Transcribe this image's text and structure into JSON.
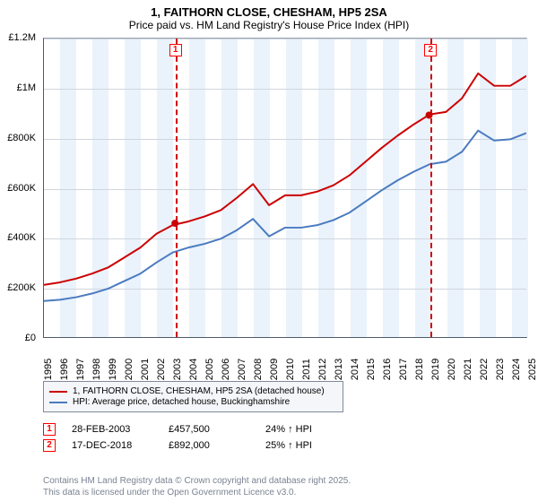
{
  "title": {
    "line1": "1, FAITHORN CLOSE, CHESHAM, HP5 2SA",
    "line2": "Price paid vs. HM Land Registry's House Price Index (HPI)"
  },
  "chart": {
    "type": "line",
    "background_color": "#ffffff",
    "band_color": "#eaf2fb",
    "grid_color": "#d0d6de",
    "axis_color": "#4f5a6a",
    "ylim": [
      0,
      1200000
    ],
    "ytick_step": 200000,
    "y_labels": [
      "£0",
      "£200K",
      "£400K",
      "£600K",
      "£800K",
      "£1M",
      "£1.2M"
    ],
    "x_years": [
      1995,
      1996,
      1997,
      1998,
      1999,
      2000,
      2001,
      2002,
      2003,
      2004,
      2005,
      2006,
      2007,
      2008,
      2009,
      2010,
      2011,
      2012,
      2013,
      2014,
      2015,
      2016,
      2017,
      2018,
      2019,
      2020,
      2021,
      2022,
      2023,
      2024,
      2025
    ],
    "series": [
      {
        "name": "1, FAITHORN CLOSE, CHESHAM, HP5 2SA (detached house)",
        "color": "#cc0000",
        "width": 2,
        "values": [
          210000,
          220000,
          235000,
          255000,
          280000,
          320000,
          360000,
          415000,
          450000,
          465000,
          485000,
          510000,
          560000,
          615000,
          530000,
          570000,
          570000,
          585000,
          610000,
          650000,
          705000,
          760000,
          810000,
          855000,
          895000,
          905000,
          960000,
          1060000,
          1010000,
          1010000,
          1050000
        ]
      },
      {
        "name": "HPI: Average price, detached house, Buckinghamshire",
        "color": "#4a7bc0",
        "width": 2,
        "values": [
          145000,
          150000,
          160000,
          175000,
          195000,
          225000,
          255000,
          300000,
          340000,
          360000,
          375000,
          395000,
          430000,
          475000,
          405000,
          440000,
          440000,
          450000,
          470000,
          500000,
          545000,
          590000,
          630000,
          665000,
          695000,
          705000,
          745000,
          830000,
          790000,
          795000,
          820000
        ]
      }
    ],
    "markers": [
      {
        "label": "1",
        "year": 2003.15,
        "value": 457500
      },
      {
        "label": "2",
        "year": 2018.95,
        "value": 892000
      }
    ],
    "label_fontsize": 11
  },
  "legend": {
    "items": [
      {
        "color": "#cc0000",
        "text": "1, FAITHORN CLOSE, CHESHAM, HP5 2SA (detached house)"
      },
      {
        "color": "#4a7bc0",
        "text": "HPI: Average price, detached house, Buckinghamshire"
      }
    ]
  },
  "events": [
    {
      "label": "1",
      "date": "28-FEB-2003",
      "price": "£457,500",
      "delta": "24% ↑ HPI"
    },
    {
      "label": "2",
      "date": "17-DEC-2018",
      "price": "£892,000",
      "delta": "25% ↑ HPI"
    }
  ],
  "footer": {
    "line1": "Contains HM Land Registry data © Crown copyright and database right 2025.",
    "line2": "This data is licensed under the Open Government Licence v3.0."
  }
}
